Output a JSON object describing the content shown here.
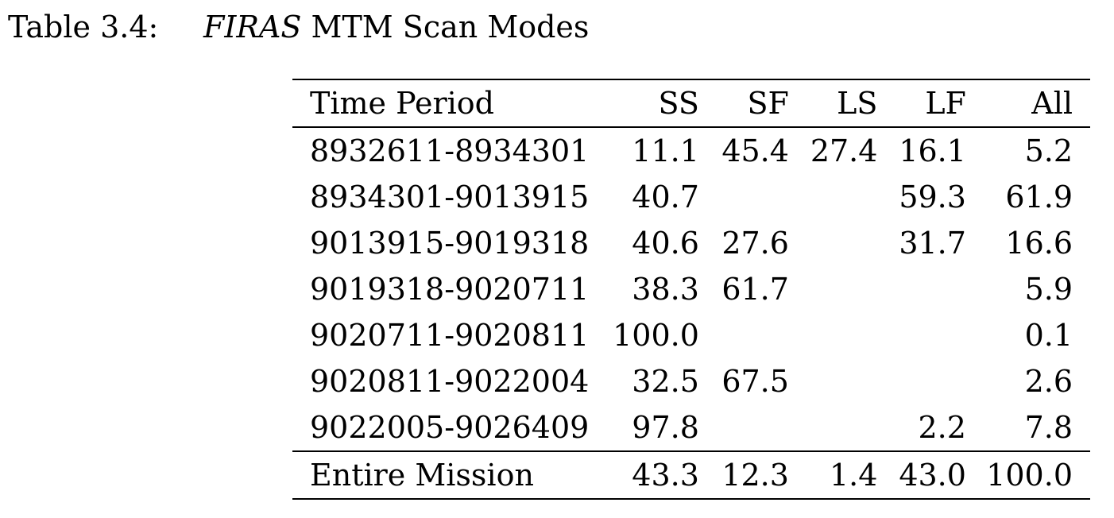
{
  "caption": {
    "label": "Table 3.4:",
    "title_italic": "FIRAS",
    "title_rest": " MTM Scan Modes"
  },
  "table": {
    "headers": [
      "Time Period",
      "SS",
      "SF",
      "LS",
      "LF",
      "All"
    ],
    "rows": [
      [
        "8932611-8934301",
        "11.1",
        "45.4",
        "27.4",
        "16.1",
        "5.2"
      ],
      [
        "8934301-9013915",
        "40.7",
        "",
        "",
        "59.3",
        "61.9"
      ],
      [
        "9013915-9019318",
        "40.6",
        "27.6",
        "",
        "31.7",
        "16.6"
      ],
      [
        "9019318-9020711",
        "38.3",
        "61.7",
        "",
        "",
        "5.9"
      ],
      [
        "9020711-9020811",
        "100.0",
        "",
        "",
        "",
        "0.1"
      ],
      [
        "9020811-9022004",
        "32.5",
        "67.5",
        "",
        "",
        "2.6"
      ],
      [
        "9022005-9026409",
        "97.8",
        "",
        "",
        "2.2",
        "7.8"
      ]
    ],
    "total": [
      "Entire Mission",
      "43.3",
      "12.3",
      "1.4",
      "43.0",
      "100.0"
    ]
  }
}
